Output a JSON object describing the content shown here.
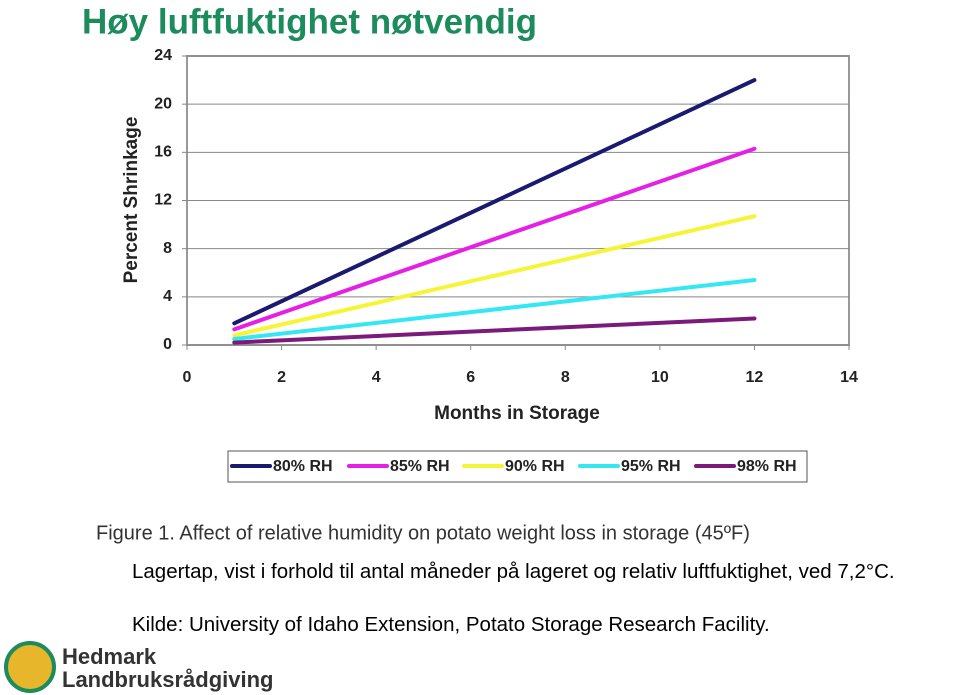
{
  "slide_title": "Høy luftfuktighet nøtvendig",
  "chart_data": {
    "type": "line",
    "x_label": "Months in Storage",
    "y_label": "Percent Shrinkage",
    "x": [
      1,
      12
    ],
    "series": [
      {
        "name": "80% RH",
        "color": "#1a1a70",
        "values": [
          1.8,
          22
        ]
      },
      {
        "name": "85% RH",
        "color": "#e51fe5",
        "values": [
          1.3,
          16.3
        ]
      },
      {
        "name": "90% RH",
        "color": "#f5f536",
        "values": [
          0.8,
          10.7
        ]
      },
      {
        "name": "95% RH",
        "color": "#33e8f2",
        "values": [
          0.5,
          5.4
        ]
      },
      {
        "name": "98% RH",
        "color": "#7b1a7b",
        "values": [
          0.2,
          2.2
        ]
      }
    ],
    "xlim": [
      0,
      14
    ],
    "xticks": [
      0,
      2,
      4,
      6,
      8,
      10,
      12,
      14
    ],
    "ylim": [
      0,
      24
    ],
    "yticks": [
      0,
      4,
      8,
      12,
      16,
      20,
      24
    ],
    "grid": true,
    "legend": "bottom"
  },
  "caption": "Figure 1. Affect of relative humidity on potato weight loss in storage (45ºF)",
  "note": "Lagertap, vist i forhold til antal måneder på lageret og relativ luftfuktighet, ved 7,2°C.",
  "source": "Kilde: University of Idaho Extension, Potato Storage Research Facility.",
  "logo": {
    "line1": "Hedmark",
    "line2": "Landbruksrådgiving"
  }
}
